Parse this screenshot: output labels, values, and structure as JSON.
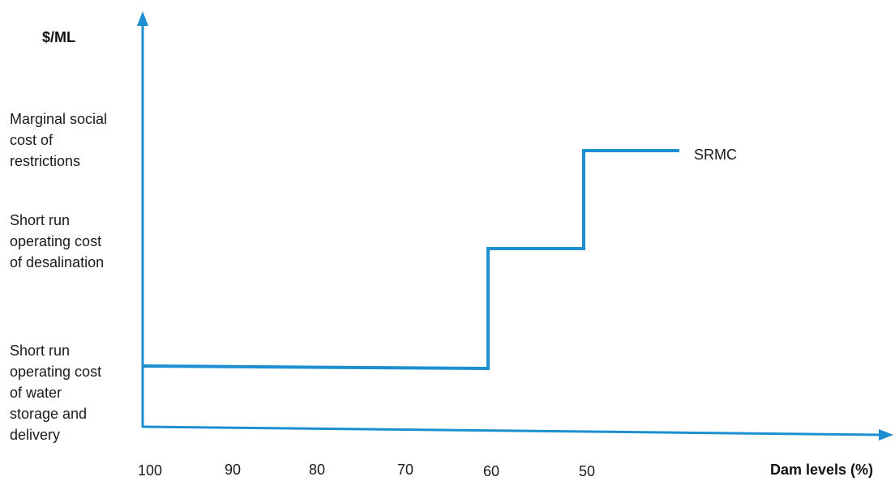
{
  "chart_data": {
    "type": "line",
    "ylabel": "$/ML",
    "xlabel": "Dam levels (%)",
    "x_ticks": [
      "100",
      "90",
      "80",
      "70",
      "60",
      "50"
    ],
    "y_level_labels": [
      "Marginal social\ncost of\nrestrictions",
      "Short run\noperating cost\nof desalination",
      "Short run\noperating cost\nof water\nstorage and\ndelivery"
    ],
    "series": [
      {
        "name": "SRMC",
        "points": [
          {
            "x": 100,
            "y": "Short run operating cost of water storage and delivery"
          },
          {
            "x": 60,
            "y": "Short run operating cost of water storage and delivery"
          },
          {
            "x": 60,
            "y": "Short run operating cost of desalination"
          },
          {
            "x": 50,
            "y": "Short run operating cost of desalination"
          },
          {
            "x": 50,
            "y": "Marginal social cost of restrictions"
          },
          {
            "x": 40,
            "y": "Marginal social cost of restrictions"
          }
        ]
      }
    ],
    "color": "#1b8fcf"
  }
}
